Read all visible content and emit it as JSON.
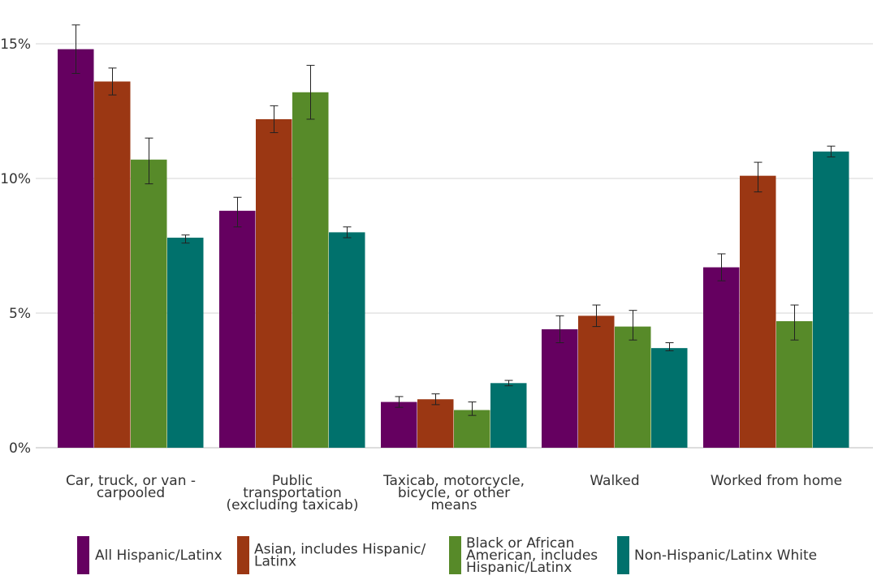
{
  "chart_data": {
    "type": "bar",
    "title": "",
    "xlabel": "",
    "ylabel": "",
    "ylim": [
      0,
      15.9
    ],
    "yticks": [
      {
        "value": 0,
        "label": "0%"
      },
      {
        "value": 5,
        "label": "5%"
      },
      {
        "value": 10,
        "label": "10%"
      },
      {
        "value": 15,
        "label": "15%"
      }
    ],
    "grid": true,
    "legend_position": "bottom",
    "categories": [
      [
        "Car, truck, or van -",
        "carpooled"
      ],
      [
        "Public",
        "transportation",
        "(excluding taxicab)"
      ],
      [
        "Taxicab, motorcycle,",
        "bicycle, or other",
        "means"
      ],
      [
        "Walked"
      ],
      [
        "Worked from home"
      ]
    ],
    "series": [
      {
        "name": [
          "All Hispanic/Latinx"
        ],
        "color": "#650060",
        "values": [
          14.8,
          8.8,
          1.7,
          4.4,
          6.7
        ],
        "error_low": [
          13.9,
          8.2,
          1.5,
          3.9,
          6.2
        ],
        "error_high": [
          15.7,
          9.3,
          1.9,
          4.9,
          7.2
        ]
      },
      {
        "name": [
          "Asian, includes Hispanic/",
          "Latinx"
        ],
        "color": "#9b3713",
        "values": [
          13.6,
          12.2,
          1.8,
          4.9,
          10.1
        ],
        "error_low": [
          13.1,
          11.7,
          1.6,
          4.5,
          9.5
        ],
        "error_high": [
          14.1,
          12.7,
          2.0,
          5.3,
          10.6
        ]
      },
      {
        "name": [
          "Black or African",
          "American, includes",
          "Hispanic/Latinx"
        ],
        "color": "#578a29",
        "values": [
          10.7,
          13.2,
          1.4,
          4.5,
          4.7
        ],
        "error_low": [
          9.8,
          12.2,
          1.2,
          4.0,
          4.0
        ],
        "error_high": [
          11.5,
          14.2,
          1.7,
          5.1,
          5.3
        ]
      },
      {
        "name": [
          "Non-Hispanic/Latinx White"
        ],
        "color": "#00716c",
        "values": [
          7.8,
          8.0,
          2.4,
          3.7,
          11.0
        ],
        "error_low": [
          7.6,
          7.8,
          2.3,
          3.6,
          10.8
        ],
        "error_high": [
          7.9,
          8.2,
          2.5,
          3.9,
          11.2
        ]
      }
    ]
  }
}
